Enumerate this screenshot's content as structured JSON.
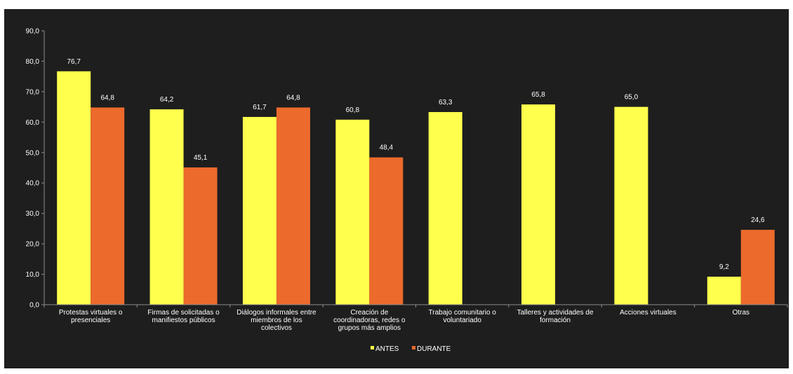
{
  "chart_data": {
    "type": "bar",
    "categories": [
      [
        "Protestas virtuales o",
        "presenciales"
      ],
      [
        "Firmas de solicitadas o",
        "manifiestos públicos"
      ],
      [
        "Diálogos informales entre",
        "miembros de los",
        "colectivos"
      ],
      [
        "Creación de",
        "coordinadoras, redes o",
        "grupos más amplios"
      ],
      [
        "Trabajo comunitario o",
        "voluntariado"
      ],
      [
        "Talleres y actividades de",
        "formación"
      ],
      [
        "Acciones virtuales"
      ],
      [
        "Otras"
      ]
    ],
    "series": [
      {
        "name": "ANTES",
        "color": "#ffff4d",
        "values": [
          76.7,
          64.2,
          61.7,
          60.8,
          63.3,
          65.8,
          65.0,
          9.2
        ],
        "labels": [
          "76,7",
          "64,2",
          "61,7",
          "60,8",
          "63,3",
          "65,8",
          "65,0",
          "9,2"
        ]
      },
      {
        "name": "DURANTE",
        "color": "#ec6a2c",
        "values": [
          64.8,
          45.1,
          64.8,
          48.4,
          null,
          null,
          null,
          24.6
        ],
        "labels": [
          "64,8",
          "45,1",
          "64,8",
          "48,4",
          null,
          null,
          null,
          "24,6"
        ]
      }
    ],
    "ylim": [
      0,
      90
    ],
    "yticks": [
      0,
      10,
      20,
      30,
      40,
      50,
      60,
      70,
      80,
      90
    ],
    "ytick_labels": [
      "0,0",
      "10,0",
      "20,0",
      "30,0",
      "40,0",
      "50,0",
      "60,0",
      "70,0",
      "80,0",
      "90,0"
    ],
    "grid": false,
    "legend_position": "bottom-center",
    "title": "",
    "xlabel": "",
    "ylabel": ""
  }
}
